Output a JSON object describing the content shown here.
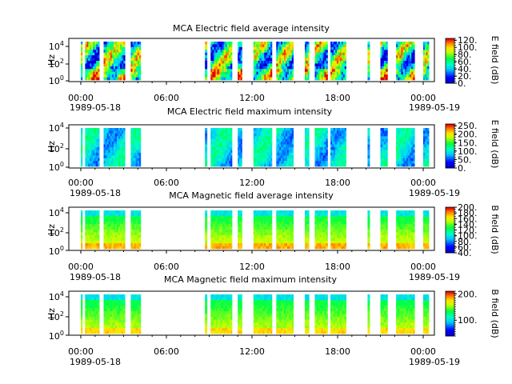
{
  "chart_data": [
    {
      "type": "heatmap",
      "title": "MCA  Electric field average intensity",
      "ylabel": "Hz",
      "yscale": "log",
      "ylim": [
        1,
        50000
      ],
      "y_tick_labels": [
        "10^0",
        "10^2",
        "10^4"
      ],
      "x_tick_labels": [
        "00:00",
        "06:00",
        "12:00",
        "18:00",
        "00:00"
      ],
      "x_start_date": "1989-05-18",
      "x_end_date": "1989-05-19",
      "colorbar_label": "E field (dB)",
      "colorbar_ticks": [
        "0.",
        "20.",
        "40.",
        "60.",
        "80.",
        "100.",
        "120."
      ],
      "colorbar_range": [
        0,
        125
      ],
      "colorscale": "rainbow (blue-cyan-green-yellow-red)",
      "data_intervals_utc_hours": [
        [
          0.0,
          0.1
        ],
        [
          0.3,
          1.3
        ],
        [
          1.6,
          3.1
        ],
        [
          3.5,
          4.2
        ],
        [
          8.7,
          8.85
        ],
        [
          9.1,
          10.6
        ],
        [
          11.0,
          11.3
        ],
        [
          12.1,
          13.4
        ],
        [
          13.7,
          14.9
        ],
        [
          15.7,
          16.0
        ],
        [
          16.4,
          17.3
        ],
        [
          17.5,
          18.6
        ],
        [
          20.1,
          20.25
        ],
        [
          21.0,
          21.5
        ],
        [
          22.1,
          22.8
        ],
        [
          22.6,
          23.4
        ],
        [
          24.0,
          24.4
        ]
      ]
    },
    {
      "type": "heatmap",
      "title": "MCA  Electric field maximum intensity",
      "ylabel": "Hz",
      "yscale": "log",
      "ylim": [
        1,
        50000
      ],
      "y_tick_labels": [
        "10^0",
        "10^2",
        "10^4"
      ],
      "x_tick_labels": [
        "00:00",
        "06:00",
        "12:00",
        "18:00",
        "00:00"
      ],
      "x_start_date": "1989-05-18",
      "x_end_date": "1989-05-19",
      "colorbar_label": "E field (dB)",
      "colorbar_ticks": [
        "0.",
        "50.",
        "100.",
        "150.",
        "200.",
        "250."
      ],
      "colorbar_range": [
        0,
        260
      ],
      "colorscale": "rainbow (blue-cyan-green-yellow-red)"
    },
    {
      "type": "heatmap",
      "title": "MCA  Magnetic field average intensity",
      "ylabel": "Hz",
      "yscale": "log",
      "ylim": [
        1,
        50000
      ],
      "y_tick_labels": [
        "10^0",
        "10^2",
        "10^4"
      ],
      "x_tick_labels": [
        "00:00",
        "06:00",
        "12:00",
        "18:00",
        "00:00"
      ],
      "x_start_date": "1989-05-18",
      "x_end_date": "1989-05-19",
      "colorbar_label": "B field (dB)",
      "colorbar_ticks": [
        "40.",
        "60.",
        "80.",
        "100.",
        "120.",
        "140.",
        "160.",
        "180.",
        "200."
      ],
      "colorbar_range": [
        40,
        200
      ],
      "colorscale": "rainbow (blue-cyan-green-yellow-red)"
    },
    {
      "type": "heatmap",
      "title": "MCA  Magnetic field maximum intensity",
      "ylabel": "Hz",
      "yscale": "log",
      "ylim": [
        1,
        50000
      ],
      "y_tick_labels": [
        "10^0",
        "10^2",
        "10^4"
      ],
      "x_tick_labels": [
        "00:00",
        "06:00",
        "12:00",
        "18:00",
        "00:00"
      ],
      "x_start_date": "1989-05-18",
      "x_end_date": "1989-05-19",
      "colorbar_label": "B field (dB)",
      "colorbar_ticks": [
        "100.",
        "200."
      ],
      "colorbar_range": [
        40,
        210
      ],
      "colorscale": "rainbow (blue-cyan-green-yellow-red)"
    }
  ]
}
